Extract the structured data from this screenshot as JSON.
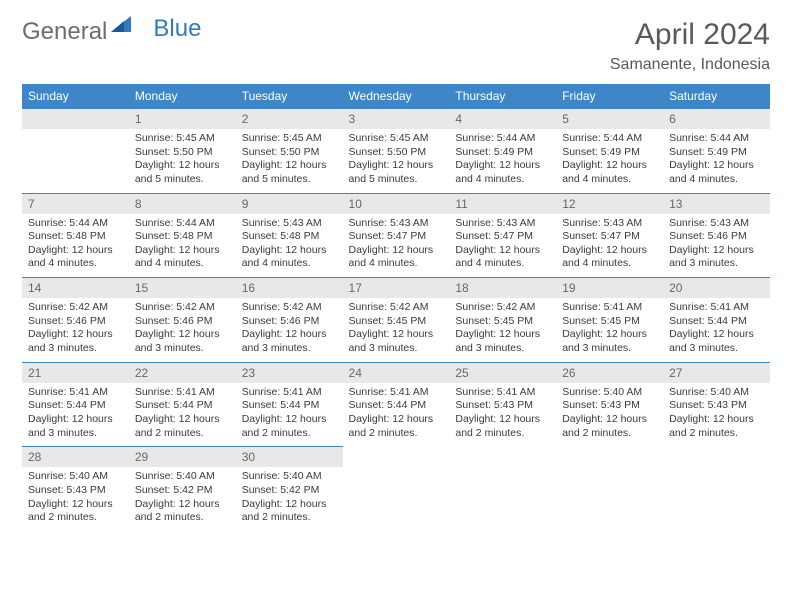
{
  "logo": {
    "general": "General",
    "blue": "Blue"
  },
  "title": "April 2024",
  "location": "Samanente, Indonesia",
  "colors": {
    "header_bg": "#3d87c9",
    "header_text": "#ffffff",
    "daynum_bg": "#e8e8e8",
    "daynum_text": "#686868",
    "body_text": "#3b3b3b",
    "rule": "#3d87c9",
    "logo_gray": "#6d6d6d",
    "logo_blue": "#2f7bbf"
  },
  "weekdays": [
    "Sunday",
    "Monday",
    "Tuesday",
    "Wednesday",
    "Thursday",
    "Friday",
    "Saturday"
  ],
  "weeks": [
    [
      null,
      {
        "n": "1",
        "sr": "Sunrise: 5:45 AM",
        "ss": "Sunset: 5:50 PM",
        "d1": "Daylight: 12 hours",
        "d2": "and 5 minutes."
      },
      {
        "n": "2",
        "sr": "Sunrise: 5:45 AM",
        "ss": "Sunset: 5:50 PM",
        "d1": "Daylight: 12 hours",
        "d2": "and 5 minutes."
      },
      {
        "n": "3",
        "sr": "Sunrise: 5:45 AM",
        "ss": "Sunset: 5:50 PM",
        "d1": "Daylight: 12 hours",
        "d2": "and 5 minutes."
      },
      {
        "n": "4",
        "sr": "Sunrise: 5:44 AM",
        "ss": "Sunset: 5:49 PM",
        "d1": "Daylight: 12 hours",
        "d2": "and 4 minutes."
      },
      {
        "n": "5",
        "sr": "Sunrise: 5:44 AM",
        "ss": "Sunset: 5:49 PM",
        "d1": "Daylight: 12 hours",
        "d2": "and 4 minutes."
      },
      {
        "n": "6",
        "sr": "Sunrise: 5:44 AM",
        "ss": "Sunset: 5:49 PM",
        "d1": "Daylight: 12 hours",
        "d2": "and 4 minutes."
      }
    ],
    [
      {
        "n": "7",
        "sr": "Sunrise: 5:44 AM",
        "ss": "Sunset: 5:48 PM",
        "d1": "Daylight: 12 hours",
        "d2": "and 4 minutes."
      },
      {
        "n": "8",
        "sr": "Sunrise: 5:44 AM",
        "ss": "Sunset: 5:48 PM",
        "d1": "Daylight: 12 hours",
        "d2": "and 4 minutes."
      },
      {
        "n": "9",
        "sr": "Sunrise: 5:43 AM",
        "ss": "Sunset: 5:48 PM",
        "d1": "Daylight: 12 hours",
        "d2": "and 4 minutes."
      },
      {
        "n": "10",
        "sr": "Sunrise: 5:43 AM",
        "ss": "Sunset: 5:47 PM",
        "d1": "Daylight: 12 hours",
        "d2": "and 4 minutes."
      },
      {
        "n": "11",
        "sr": "Sunrise: 5:43 AM",
        "ss": "Sunset: 5:47 PM",
        "d1": "Daylight: 12 hours",
        "d2": "and 4 minutes."
      },
      {
        "n": "12",
        "sr": "Sunrise: 5:43 AM",
        "ss": "Sunset: 5:47 PM",
        "d1": "Daylight: 12 hours",
        "d2": "and 4 minutes."
      },
      {
        "n": "13",
        "sr": "Sunrise: 5:43 AM",
        "ss": "Sunset: 5:46 PM",
        "d1": "Daylight: 12 hours",
        "d2": "and 3 minutes."
      }
    ],
    [
      {
        "n": "14",
        "sr": "Sunrise: 5:42 AM",
        "ss": "Sunset: 5:46 PM",
        "d1": "Daylight: 12 hours",
        "d2": "and 3 minutes."
      },
      {
        "n": "15",
        "sr": "Sunrise: 5:42 AM",
        "ss": "Sunset: 5:46 PM",
        "d1": "Daylight: 12 hours",
        "d2": "and 3 minutes."
      },
      {
        "n": "16",
        "sr": "Sunrise: 5:42 AM",
        "ss": "Sunset: 5:46 PM",
        "d1": "Daylight: 12 hours",
        "d2": "and 3 minutes."
      },
      {
        "n": "17",
        "sr": "Sunrise: 5:42 AM",
        "ss": "Sunset: 5:45 PM",
        "d1": "Daylight: 12 hours",
        "d2": "and 3 minutes."
      },
      {
        "n": "18",
        "sr": "Sunrise: 5:42 AM",
        "ss": "Sunset: 5:45 PM",
        "d1": "Daylight: 12 hours",
        "d2": "and 3 minutes."
      },
      {
        "n": "19",
        "sr": "Sunrise: 5:41 AM",
        "ss": "Sunset: 5:45 PM",
        "d1": "Daylight: 12 hours",
        "d2": "and 3 minutes."
      },
      {
        "n": "20",
        "sr": "Sunrise: 5:41 AM",
        "ss": "Sunset: 5:44 PM",
        "d1": "Daylight: 12 hours",
        "d2": "and 3 minutes."
      }
    ],
    [
      {
        "n": "21",
        "sr": "Sunrise: 5:41 AM",
        "ss": "Sunset: 5:44 PM",
        "d1": "Daylight: 12 hours",
        "d2": "and 3 minutes."
      },
      {
        "n": "22",
        "sr": "Sunrise: 5:41 AM",
        "ss": "Sunset: 5:44 PM",
        "d1": "Daylight: 12 hours",
        "d2": "and 2 minutes."
      },
      {
        "n": "23",
        "sr": "Sunrise: 5:41 AM",
        "ss": "Sunset: 5:44 PM",
        "d1": "Daylight: 12 hours",
        "d2": "and 2 minutes."
      },
      {
        "n": "24",
        "sr": "Sunrise: 5:41 AM",
        "ss": "Sunset: 5:44 PM",
        "d1": "Daylight: 12 hours",
        "d2": "and 2 minutes."
      },
      {
        "n": "25",
        "sr": "Sunrise: 5:41 AM",
        "ss": "Sunset: 5:43 PM",
        "d1": "Daylight: 12 hours",
        "d2": "and 2 minutes."
      },
      {
        "n": "26",
        "sr": "Sunrise: 5:40 AM",
        "ss": "Sunset: 5:43 PM",
        "d1": "Daylight: 12 hours",
        "d2": "and 2 minutes."
      },
      {
        "n": "27",
        "sr": "Sunrise: 5:40 AM",
        "ss": "Sunset: 5:43 PM",
        "d1": "Daylight: 12 hours",
        "d2": "and 2 minutes."
      }
    ],
    [
      {
        "n": "28",
        "sr": "Sunrise: 5:40 AM",
        "ss": "Sunset: 5:43 PM",
        "d1": "Daylight: 12 hours",
        "d2": "and 2 minutes."
      },
      {
        "n": "29",
        "sr": "Sunrise: 5:40 AM",
        "ss": "Sunset: 5:42 PM",
        "d1": "Daylight: 12 hours",
        "d2": "and 2 minutes."
      },
      {
        "n": "30",
        "sr": "Sunrise: 5:40 AM",
        "ss": "Sunset: 5:42 PM",
        "d1": "Daylight: 12 hours",
        "d2": "and 2 minutes."
      },
      null,
      null,
      null,
      null
    ]
  ]
}
